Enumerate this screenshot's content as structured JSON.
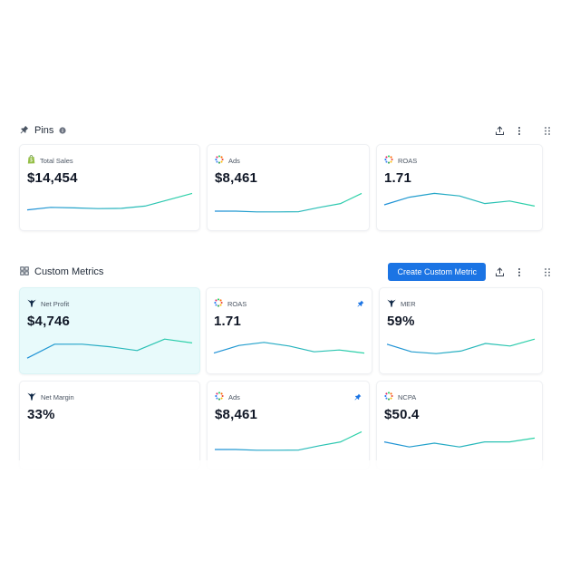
{
  "pins": {
    "title": "Pins",
    "cards": [
      {
        "label": "Total Sales",
        "value": "$14,454",
        "icon": "shopify-icon",
        "spark": [
          0.3,
          0.4,
          0.38,
          0.35,
          0.36,
          0.45,
          0.7,
          0.95
        ]
      },
      {
        "label": "Ads",
        "value": "$8,461",
        "icon": "ads-icon",
        "spark": [
          0.25,
          0.25,
          0.22,
          0.22,
          0.23,
          0.4,
          0.55,
          0.95
        ]
      },
      {
        "label": "ROAS",
        "value": "1.71",
        "icon": "ads-icon",
        "spark": [
          0.5,
          0.8,
          0.95,
          0.85,
          0.55,
          0.65,
          0.45
        ]
      }
    ]
  },
  "custom": {
    "title": "Custom Metrics",
    "create_label": "Create Custom Metric",
    "cards": [
      {
        "label": "Net Profit",
        "value": "$4,746",
        "icon": "triple-whale-icon",
        "highlight": true,
        "spark": [
          0.1,
          0.65,
          0.65,
          0.55,
          0.4,
          0.85,
          0.7
        ]
      },
      {
        "label": "ROAS",
        "value": "1.71",
        "icon": "ads-icon",
        "pinned": true,
        "spark": [
          0.3,
          0.6,
          0.72,
          0.58,
          0.35,
          0.42,
          0.3
        ]
      },
      {
        "label": "MER",
        "value": "59%",
        "icon": "triple-whale-icon",
        "spark": [
          0.65,
          0.35,
          0.28,
          0.38,
          0.68,
          0.58,
          0.85
        ]
      },
      {
        "label": "Net Margin",
        "value": "33%",
        "icon": "triple-whale-icon",
        "spark": []
      },
      {
        "label": "Ads",
        "value": "$8,461",
        "icon": "ads-icon",
        "pinned": true,
        "spark": [
          0.25,
          0.25,
          0.22,
          0.22,
          0.23,
          0.4,
          0.55,
          0.95
        ]
      },
      {
        "label": "NCPA",
        "value": "$50.4",
        "icon": "ads-icon",
        "spark": [
          0.55,
          0.35,
          0.5,
          0.35,
          0.55,
          0.55,
          0.7
        ]
      }
    ]
  },
  "colors": {
    "line_start": "#1f8fd8",
    "line_end": "#2ed4a6",
    "accent": "#1b74e4"
  }
}
